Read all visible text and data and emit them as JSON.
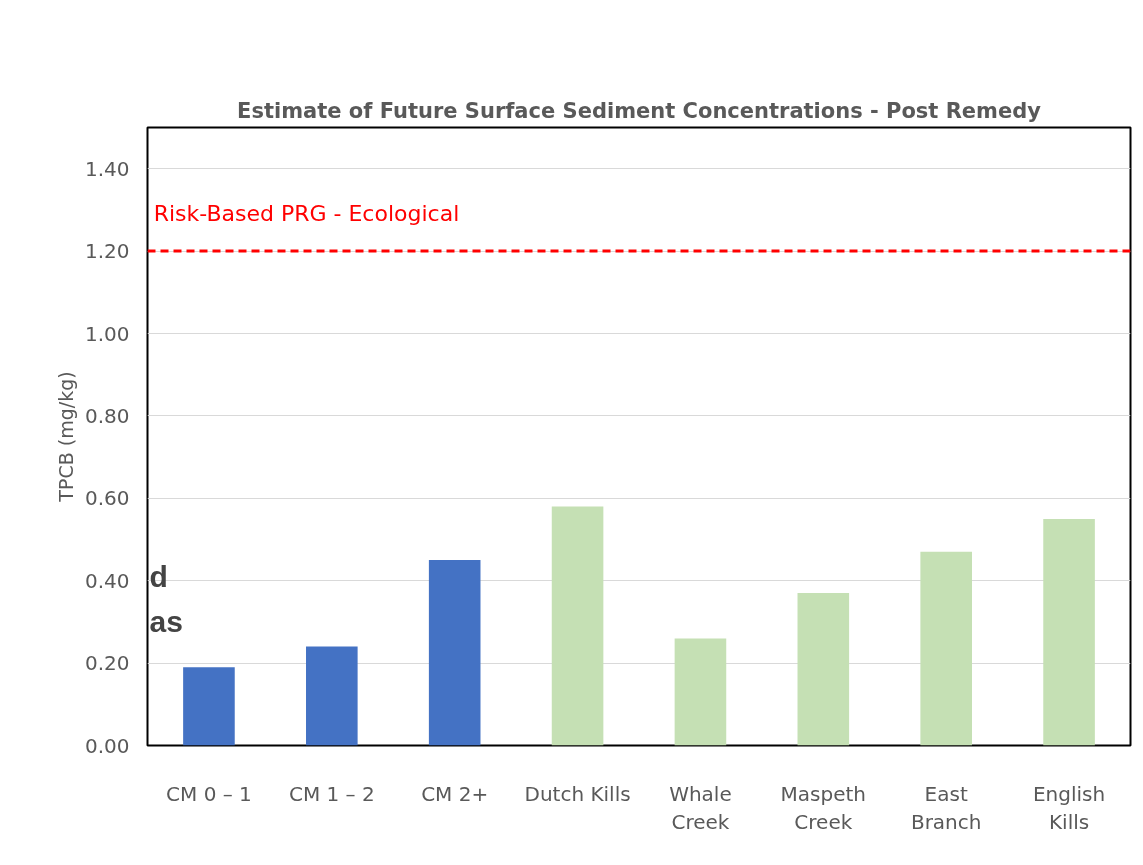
{
  "chart_data": {
    "type": "bar",
    "title": "Estimate of Future Surface Sediment Concentrations - Post Remedy",
    "ylabel": "TPCB (mg/kg)",
    "categories": [
      "CM 0 – 1",
      "CM 1 – 2",
      "CM 2+",
      "Dutch Kills",
      "Whale\nCreek",
      "Maspeth\nCreek",
      "East\nBranch",
      "English\nKills"
    ],
    "values": [
      0.19,
      0.24,
      0.45,
      0.58,
      0.26,
      0.37,
      0.47,
      0.55
    ],
    "colors": [
      "#4472c4",
      "#4472c4",
      "#4472c4",
      "#c5e0b4",
      "#c5e0b4",
      "#c5e0b4",
      "#c5e0b4",
      "#c5e0b4"
    ],
    "ylim": [
      0,
      1.5
    ],
    "yticks": [
      {
        "value": 0,
        "label": "0.00"
      },
      {
        "value": 0.2,
        "label": "0.20"
      },
      {
        "value": 0.4,
        "label": "0.40"
      },
      {
        "value": 0.6,
        "label": "0.60"
      },
      {
        "value": 0.8,
        "label": "0.80"
      },
      {
        "value": 1.0,
        "label": "1.00"
      },
      {
        "value": 1.2,
        "label": "1.20"
      },
      {
        "value": 1.4,
        "label": "1.40"
      }
    ],
    "grid": "y",
    "ref_lines": [
      {
        "axis": "y",
        "value": 1.2,
        "label": "Risk-Based PRG - Ecological",
        "color": "#ff0000",
        "line_style": "dashed"
      }
    ],
    "annotations": [
      "d",
      "as"
    ]
  }
}
